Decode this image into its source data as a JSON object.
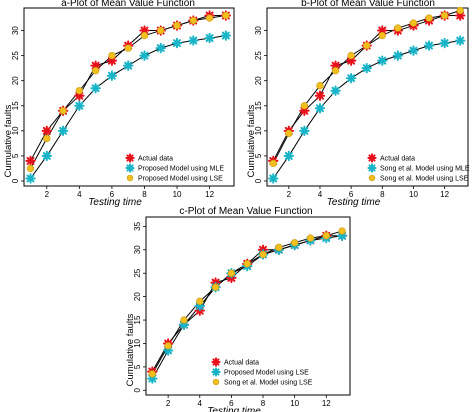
{
  "chart_data": [
    {
      "type": "line",
      "title": "a-Plot of Mean Value Function",
      "xlabel": "Testing time",
      "ylabel": "Cumulative faults",
      "x": [
        1,
        2,
        3,
        4,
        5,
        6,
        7,
        8,
        9,
        10,
        11,
        12,
        13
      ],
      "xticks": [
        2,
        4,
        6,
        8,
        10,
        12
      ],
      "yticks": [
        0,
        5,
        10,
        15,
        20,
        25,
        30
      ],
      "xlim": [
        0.6,
        13.5
      ],
      "ylim": [
        -1,
        34.5
      ],
      "legend_position": "bottom-right",
      "series": [
        {
          "name": "Actual data",
          "marker": "star-red",
          "values": [
            4,
            10,
            14,
            17,
            23,
            24,
            27,
            30,
            30,
            31,
            32,
            33,
            33
          ]
        },
        {
          "name": "Proposed Model using MLE",
          "marker": "star-cyan",
          "values": [
            0.5,
            5,
            10,
            15,
            18.5,
            21,
            23,
            25,
            26.5,
            27.5,
            28,
            28.5,
            29
          ]
        },
        {
          "name": "Proposed Model using LSE",
          "marker": "circle-yellow",
          "values": [
            2.5,
            8.5,
            14,
            18,
            22,
            25,
            26.5,
            29,
            30,
            31,
            32,
            32.5,
            33
          ]
        }
      ]
    },
    {
      "type": "line",
      "title": "b-Plot of Mean Value Function",
      "xlabel": "Testing time",
      "ylabel": "Cumulative faults",
      "x": [
        1,
        2,
        3,
        4,
        5,
        6,
        7,
        8,
        9,
        10,
        11,
        12,
        13
      ],
      "xticks": [
        2,
        4,
        6,
        8,
        10,
        12
      ],
      "yticks": [
        0,
        5,
        10,
        15,
        20,
        25,
        30
      ],
      "xlim": [
        0.6,
        13.5
      ],
      "ylim": [
        -1,
        34.5
      ],
      "legend_position": "bottom-right",
      "series": [
        {
          "name": "Actual data",
          "marker": "star-red",
          "values": [
            4,
            10,
            14,
            17,
            23,
            24,
            27,
            30,
            30,
            31,
            32,
            33,
            33
          ]
        },
        {
          "name": "Song et al. Model using MLE",
          "marker": "star-cyan",
          "values": [
            0.5,
            5,
            10,
            14.5,
            18,
            20.5,
            22.5,
            24,
            25,
            26,
            27,
            27.5,
            28
          ]
        },
        {
          "name": "Song et al. Model using LSE",
          "marker": "circle-yellow",
          "values": [
            3.5,
            9.5,
            15,
            19,
            22,
            25,
            27,
            29,
            30.5,
            31.5,
            32.5,
            33,
            34
          ]
        }
      ]
    },
    {
      "type": "line",
      "title": "c-Plot of Mean Value Function",
      "xlabel": "Testing time",
      "ylabel": "Cumulative faults",
      "x": [
        1,
        2,
        3,
        4,
        5,
        6,
        7,
        8,
        9,
        10,
        11,
        12,
        13
      ],
      "xticks": [
        2,
        4,
        6,
        8,
        10,
        12
      ],
      "yticks": [
        0,
        5,
        10,
        15,
        20,
        25,
        30,
        35
      ],
      "xlim": [
        0.6,
        13.5
      ],
      "ylim": [
        -1,
        37
      ],
      "legend_position": "bottom-right",
      "series": [
        {
          "name": "Actual data",
          "marker": "star-red",
          "values": [
            4,
            10,
            14,
            17,
            23,
            24,
            27,
            30,
            30,
            31,
            32,
            33,
            33
          ]
        },
        {
          "name": "Proposed Model using LSE",
          "marker": "star-cyan",
          "values": [
            2.5,
            8.5,
            14,
            18,
            22,
            25,
            26.5,
            29,
            30,
            31,
            32,
            32.5,
            33
          ]
        },
        {
          "name": "Song et al. Model using LSE",
          "marker": "circle-yellow",
          "values": [
            3.5,
            9.5,
            15,
            19,
            22,
            25,
            27,
            29,
            30.5,
            31.5,
            32.5,
            33,
            34
          ]
        }
      ]
    }
  ]
}
